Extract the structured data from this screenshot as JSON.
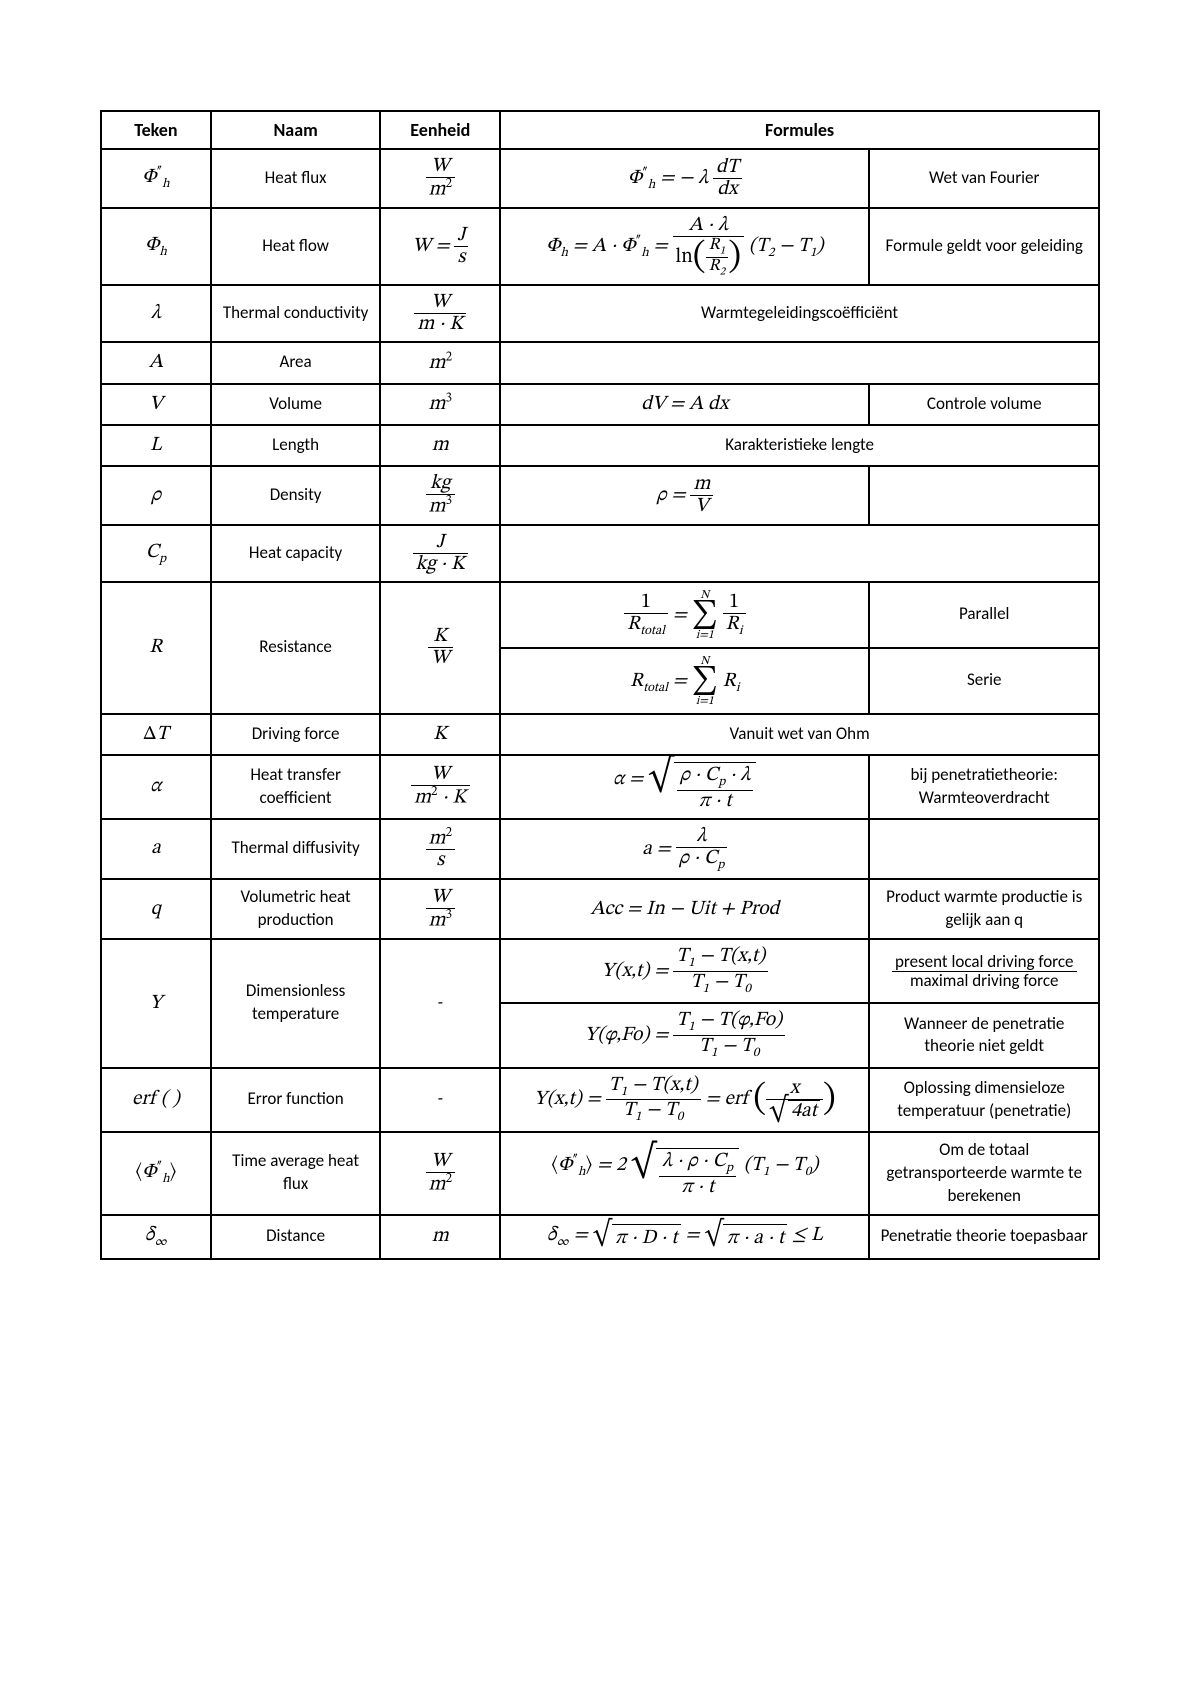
{
  "table": {
    "border_color": "#000000",
    "background": "#ffffff",
    "font_family": "Calibri, Segoe UI, Arial",
    "math_font": "Cambria Math, Times New Roman",
    "header_fontsize": 18,
    "cell_fontsize": 17,
    "math_fontsize": 20,
    "column_widths_pct": [
      11,
      17,
      12,
      37,
      23
    ],
    "headers": [
      "Teken",
      "Naam",
      "Eenheid",
      "Formules"
    ],
    "rows": [
      {
        "sym": "Φ″ₕ",
        "name": "Heat flux",
        "unit": "W / m²",
        "formula": "Φ″ₕ = −λ · dT/dx",
        "note": "Wet van Fourier"
      },
      {
        "sym": "Φₕ",
        "name": "Heat flow",
        "unit": "W = J / s",
        "formula": "Φₕ = A · Φ″ₕ = (A·λ / ln(R₁/R₂)) · (T₂ − T₁)",
        "note": "Formule geldt voor geleiding"
      },
      {
        "sym": "λ",
        "name": "Thermal conductivity",
        "unit": "W / (m·K)",
        "formula": "",
        "note": "Warmtegeleidingscoëfficiënt"
      },
      {
        "sym": "A",
        "name": "Area",
        "unit": "m²",
        "formula": "",
        "note": ""
      },
      {
        "sym": "V",
        "name": "Volume",
        "unit": "m³",
        "formula": "dV = A dx",
        "note": "Controle volume"
      },
      {
        "sym": "L",
        "name": "Length",
        "unit": "m",
        "formula": "",
        "note": "Karakteristieke lengte"
      },
      {
        "sym": "ρ",
        "name": "Density",
        "unit": "kg / m³",
        "formula": "ρ = m / V",
        "note": ""
      },
      {
        "sym": "Cₚ",
        "name": "Heat capacity",
        "unit": "J / (kg·K)",
        "formula": "",
        "note": ""
      },
      {
        "sym": "R",
        "name": "Resistance",
        "unit": "K / W",
        "formula_a": "1 / R_total = Σᵢ₌₁ᴺ 1/Rᵢ",
        "note_a": "Parallel",
        "formula_b": "R_total = Σᵢ₌₁ᴺ Rᵢ",
        "note_b": "Serie"
      },
      {
        "sym": "ΔT",
        "name": "Driving force",
        "unit": "K",
        "formula": "",
        "note": "Vanuit wet van Ohm"
      },
      {
        "sym": "α",
        "name": "Heat transfer coefficient",
        "unit": "W / (m²·K)",
        "formula": "α = √( ρ·Cₚ·λ / (π·t) )",
        "note": "bij penetratietheorie: Warmteoverdracht"
      },
      {
        "sym": "a",
        "name": "Thermal diffusivity",
        "unit": "m² / s",
        "formula": "a = λ / (ρ·Cₚ)",
        "note": ""
      },
      {
        "sym": "q",
        "name": "Volumetric heat production",
        "unit": "W / m³",
        "formula": "Acc = In − Uit + Prod",
        "note": "Product warmte productie is gelijk aan q"
      },
      {
        "sym": "Y",
        "name": "Dimensionless temperature",
        "unit": "-",
        "formula_a": "Y(x,t) = (T₁ − T(x,t)) / (T₁ − T₀)",
        "note_a": "present local driving force / maximal driving force",
        "formula_b": "Y(φ,Fo) = (T₁ − T(φ,Fo)) / (T₁ − T₀)",
        "note_b": "Wanneer de penetratie theorie niet geldt"
      },
      {
        "sym": "erf( )",
        "name": "Error function",
        "unit": "-",
        "formula": "Y(x,t) = (T₁ − T(x,t)) / (T₁ − T₀) = erf( x / √(4at) )",
        "note": "Oplossing dimensieloze temperatuur (penetratie)"
      },
      {
        "sym": "⟨Φ″ₕ⟩",
        "name": "Time average heat flux",
        "unit": "W / m²",
        "formula": "⟨Φ″ₕ⟩ = 2 √( λ·ρ·Cₚ / (π·t) ) · (T₁ − T₀)",
        "note": "Om de totaal getransporteerde warmte te berekenen"
      },
      {
        "sym": "δ∞",
        "name": "Distance",
        "unit": "m",
        "formula": "δ∞ = √(π·D·t) = √(π·a·t) ≤ L",
        "note": "Penetratie theorie toepasbaar"
      }
    ]
  }
}
